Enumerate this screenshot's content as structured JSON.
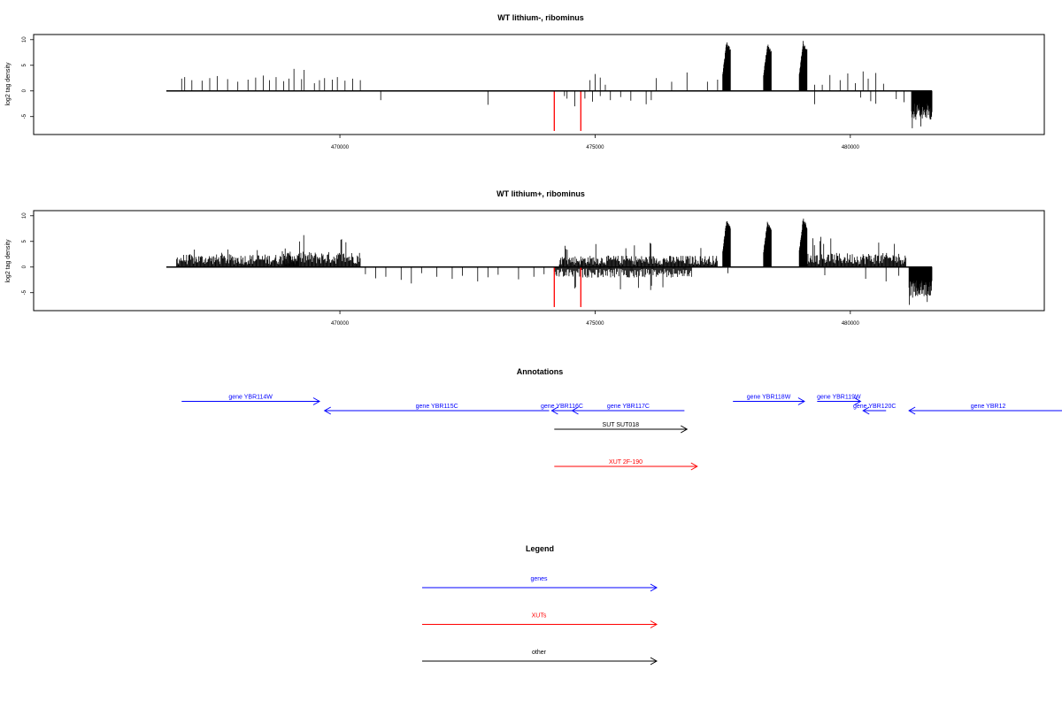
{
  "chart_data": [
    {
      "type": "bar",
      "title": "WT lithium-, ribominus",
      "ylabel": "log2 tag density",
      "xlim": [
        464000,
        483800
      ],
      "ylim": [
        -8.5,
        11
      ],
      "x_ticks": [
        470000,
        475000,
        480000
      ],
      "x_tick_labels": [
        "470000",
        "475000",
        "480000"
      ],
      "y_ticks": [
        -5,
        0,
        5,
        10
      ],
      "y_tick_labels": [
        "-5",
        "0",
        "5",
        "10"
      ],
      "baseline": {
        "x": [
          466600,
          481600
        ]
      },
      "highlight_color": "#ff0000",
      "highlight_bars": [
        {
          "x": 474200,
          "y": -7.8
        },
        {
          "x": 474720,
          "y": -7.8
        }
      ],
      "sparse_positive": [
        {
          "x": 466900,
          "y": 2.4
        },
        {
          "x": 466960,
          "y": 2.7
        },
        {
          "x": 467100,
          "y": 2.1
        },
        {
          "x": 467300,
          "y": 2.0
        },
        {
          "x": 467450,
          "y": 2.5
        },
        {
          "x": 467600,
          "y": 2.9
        },
        {
          "x": 467800,
          "y": 2.3
        },
        {
          "x": 468000,
          "y": 1.8
        },
        {
          "x": 468200,
          "y": 2.2
        },
        {
          "x": 468350,
          "y": 2.6
        },
        {
          "x": 468500,
          "y": 3.0
        },
        {
          "x": 468620,
          "y": 2.1
        },
        {
          "x": 468750,
          "y": 2.7
        },
        {
          "x": 468900,
          "y": 1.9
        },
        {
          "x": 469000,
          "y": 2.4
        },
        {
          "x": 469100,
          "y": 4.3
        },
        {
          "x": 469250,
          "y": 2.3
        },
        {
          "x": 469300,
          "y": 4.1
        },
        {
          "x": 469500,
          "y": 1.5
        },
        {
          "x": 469600,
          "y": 2.1
        },
        {
          "x": 469700,
          "y": 2.5
        },
        {
          "x": 469850,
          "y": 2.2
        },
        {
          "x": 469950,
          "y": 2.7
        },
        {
          "x": 470100,
          "y": 2.0
        },
        {
          "x": 470250,
          "y": 2.4
        },
        {
          "x": 470400,
          "y": 2.1
        },
        {
          "x": 474900,
          "y": 2.1
        },
        {
          "x": 475000,
          "y": 3.3
        },
        {
          "x": 475100,
          "y": 2.6
        },
        {
          "x": 475200,
          "y": 1.2
        },
        {
          "x": 476200,
          "y": 2.5
        },
        {
          "x": 476500,
          "y": 1.8
        },
        {
          "x": 476800,
          "y": 3.6
        },
        {
          "x": 477200,
          "y": 1.8
        },
        {
          "x": 477400,
          "y": 2.2
        },
        {
          "x": 479300,
          "y": 1.2
        },
        {
          "x": 479450,
          "y": 1.2
        },
        {
          "x": 479600,
          "y": 3.1
        },
        {
          "x": 479800,
          "y": 2.1
        },
        {
          "x": 479950,
          "y": 3.4
        },
        {
          "x": 480100,
          "y": 1.5
        },
        {
          "x": 480250,
          "y": 3.8
        },
        {
          "x": 480350,
          "y": 2.4
        },
        {
          "x": 480500,
          "y": 3.5
        },
        {
          "x": 480650,
          "y": 1.4
        }
      ],
      "sparse_negative": [
        {
          "x": 470800,
          "y": -1.8
        },
        {
          "x": 472900,
          "y": -2.7
        },
        {
          "x": 474400,
          "y": -1.0
        },
        {
          "x": 474450,
          "y": -1.5
        },
        {
          "x": 474600,
          "y": -3.0
        },
        {
          "x": 474800,
          "y": -1.5
        },
        {
          "x": 474950,
          "y": -2.1
        },
        {
          "x": 475100,
          "y": -1.0
        },
        {
          "x": 475300,
          "y": -1.8
        },
        {
          "x": 475500,
          "y": -1.2
        },
        {
          "x": 475700,
          "y": -1.9
        },
        {
          "x": 476000,
          "y": -2.6
        },
        {
          "x": 476100,
          "y": -1.8
        },
        {
          "x": 479300,
          "y": -2.6
        },
        {
          "x": 480200,
          "y": -1.3
        },
        {
          "x": 480400,
          "y": -2.0
        },
        {
          "x": 480500,
          "y": -2.5
        },
        {
          "x": 480900,
          "y": -1.6
        },
        {
          "x": 481050,
          "y": -2.2
        }
      ],
      "peaks": [
        {
          "x_start": 477500,
          "x_end": 477650,
          "max": 9.8
        },
        {
          "x_start": 478300,
          "x_end": 478450,
          "max": 9.3
        },
        {
          "x_start": 479000,
          "x_end": 479150,
          "max": 9.8
        }
      ],
      "dense_negative": {
        "x_start": 481200,
        "x_end": 481600,
        "min": -7.8,
        "mean": -4.5
      }
    },
    {
      "type": "bar",
      "title": "WT lithium+, ribominus",
      "ylabel": "log2 tag density",
      "xlim": [
        464000,
        483800
      ],
      "ylim": [
        -8.5,
        11
      ],
      "x_ticks": [
        470000,
        475000,
        480000
      ],
      "x_tick_labels": [
        "470000",
        "475000",
        "480000"
      ],
      "y_ticks": [
        -5,
        0,
        5,
        10
      ],
      "y_tick_labels": [
        "-5",
        "0",
        "5",
        "10"
      ],
      "baseline": {
        "x": [
          466600,
          481600
        ]
      },
      "highlight_color": "#ff0000",
      "highlight_bars": [
        {
          "x": 474200,
          "y": -7.8
        },
        {
          "x": 474720,
          "y": -7.8
        }
      ],
      "dense_positive_regions": [
        {
          "x_start": 466800,
          "x_end": 469200,
          "mean": 2.0,
          "max": 3.8
        },
        {
          "x_start": 468900,
          "x_end": 470400,
          "mean": 2.4,
          "max": 6.3
        },
        {
          "x_start": 474300,
          "x_end": 477400,
          "mean": 1.8,
          "max": 4.8
        },
        {
          "x_start": 479100,
          "x_end": 481100,
          "mean": 2.2,
          "max": 6.0
        }
      ],
      "dense_negative_regions": [
        {
          "x_start": 474200,
          "x_end": 476900,
          "mean": -1.6,
          "min": -4.5
        }
      ],
      "sparse_negative": [
        {
          "x": 470500,
          "y": -1.4
        },
        {
          "x": 470700,
          "y": -2.2
        },
        {
          "x": 470900,
          "y": -1.9
        },
        {
          "x": 471200,
          "y": -2.5
        },
        {
          "x": 471400,
          "y": -3.2
        },
        {
          "x": 471600,
          "y": -1.2
        },
        {
          "x": 471900,
          "y": -1.9
        },
        {
          "x": 472200,
          "y": -2.3
        },
        {
          "x": 472400,
          "y": -1.7
        },
        {
          "x": 472700,
          "y": -2.8
        },
        {
          "x": 472900,
          "y": -2.0
        },
        {
          "x": 473100,
          "y": -1.5
        },
        {
          "x": 473500,
          "y": -2.4
        },
        {
          "x": 473800,
          "y": -1.9
        },
        {
          "x": 474000,
          "y": -1.4
        },
        {
          "x": 477600,
          "y": -1.2
        },
        {
          "x": 479500,
          "y": -1.6
        },
        {
          "x": 480300,
          "y": -2.3
        },
        {
          "x": 480700,
          "y": -2.8
        },
        {
          "x": 480950,
          "y": -1.7
        }
      ],
      "peaks": [
        {
          "x_start": 477500,
          "x_end": 477650,
          "max": 9.3
        },
        {
          "x_start": 478300,
          "x_end": 478450,
          "max": 9.1
        },
        {
          "x_start": 479000,
          "x_end": 479150,
          "max": 9.6
        }
      ],
      "dense_negative": {
        "x_start": 481150,
        "x_end": 481600,
        "min": -7.8,
        "mean": -4.8
      }
    }
  ],
  "annotations": {
    "title": "Annotations",
    "xlim": [
      464000,
      483800
    ],
    "tracks": [
      {
        "label": "gene YBR114W",
        "x_start": 466900,
        "x_end": 469600,
        "row": 1,
        "direction": "right",
        "color": "#0000ff"
      },
      {
        "label": "gene YBR115C",
        "x_start": 469700,
        "x_end": 474100,
        "row": 2,
        "direction": "left",
        "color": "#0000ff"
      },
      {
        "label": "gene YBR116C",
        "x_start": 474150,
        "x_end": 474550,
        "row": 2,
        "direction": "left",
        "color": "#0000ff"
      },
      {
        "label": "gene YBR117C",
        "x_start": 474550,
        "x_end": 476750,
        "row": 2,
        "direction": "left",
        "color": "#0000ff"
      },
      {
        "label": "gene YBR118W",
        "x_start": 477700,
        "x_end": 479100,
        "row": 1,
        "direction": "right",
        "color": "#0000ff"
      },
      {
        "label": "gene YBR119W",
        "x_start": 479350,
        "x_end": 480200,
        "row": 1,
        "direction": "right",
        "color": "#0000ff"
      },
      {
        "label": "gene YBR120C",
        "x_start": 480250,
        "x_end": 480700,
        "row": 2,
        "direction": "left",
        "color": "#0000ff"
      },
      {
        "label": "gene YBR12",
        "x_start": 481150,
        "x_end": 484500,
        "row": 2,
        "direction": "left",
        "color": "#0000ff"
      },
      {
        "label": "SUT SUT018",
        "x_start": 474200,
        "x_end": 476800,
        "row": 4,
        "direction": "right",
        "color": "#000000"
      },
      {
        "label": "XUT 2F-190",
        "x_start": 474200,
        "x_end": 477000,
        "row": 8,
        "direction": "right",
        "color": "#ff0000"
      }
    ]
  },
  "legend": {
    "title": "Legend",
    "items": [
      {
        "label": "genes",
        "color": "#0000ff"
      },
      {
        "label": "XUTs",
        "color": "#ff0000"
      },
      {
        "label": "other",
        "color": "#000000"
      }
    ]
  }
}
